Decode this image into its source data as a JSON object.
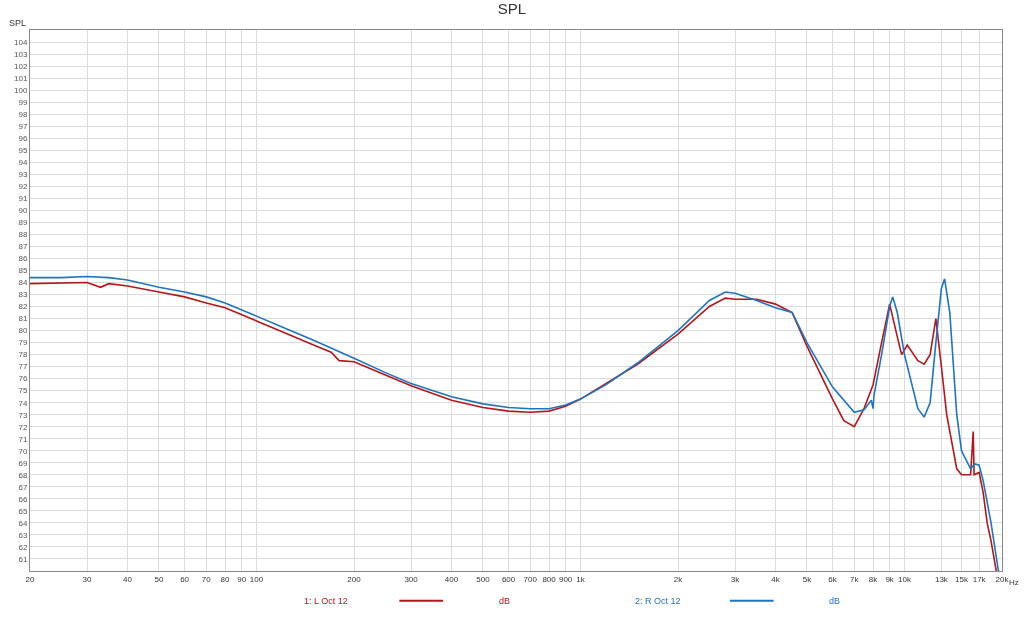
{
  "chart_data": {
    "type": "line",
    "title": "SPL",
    "ylabel": "SPL",
    "log": "x",
    "grid": true,
    "legend": "bottom",
    "marker": "none",
    "line_style": "solid",
    "xlim": [
      20,
      20000
    ],
    "ylim": [
      60,
      105
    ],
    "xticks": [
      20,
      30,
      40,
      50,
      60,
      70,
      80,
      90,
      100,
      200,
      300,
      400,
      500,
      600,
      700,
      800,
      900,
      {
        "value": 1000,
        "label": "1k"
      },
      {
        "value": 2000,
        "label": "2k"
      },
      {
        "value": 3000,
        "label": "3k"
      },
      {
        "value": 4000,
        "label": "4k"
      },
      {
        "value": 5000,
        "label": "5k"
      },
      {
        "value": 6000,
        "label": "6k"
      },
      {
        "value": 7000,
        "label": "7k"
      },
      {
        "value": 8000,
        "label": "8k"
      },
      {
        "value": 9000,
        "label": "9k"
      },
      {
        "value": 10000,
        "label": "10k"
      },
      {
        "value": 13000,
        "label": "13k"
      },
      {
        "value": 15000,
        "label": "15k"
      },
      {
        "value": 17000,
        "label": "17k"
      },
      {
        "value": 20000,
        "label": "20k"
      }
    ],
    "xlabel": "Hz",
    "yticks": [
      61,
      62,
      63,
      64,
      65,
      66,
      67,
      68,
      69,
      70,
      71,
      72,
      73,
      74,
      75,
      76,
      77,
      78,
      79,
      80,
      81,
      82,
      83,
      84,
      85,
      86,
      87,
      88,
      89,
      90,
      91,
      92,
      93,
      94,
      95,
      96,
      97,
      98,
      99,
      100,
      101,
      102,
      103,
      104
    ],
    "annotations": [
      "dB",
      "dB"
    ],
    "series": [
      {
        "name": "1: L Oct 12",
        "color": "#b3171b",
        "x": [
          20,
          30,
          33,
          35,
          40,
          50,
          60,
          70,
          80,
          100,
          120,
          150,
          170,
          180,
          200,
          250,
          300,
          400,
          500,
          600,
          700,
          800,
          900,
          1000,
          1500,
          2000,
          2500,
          2800,
          3000,
          3500,
          4000,
          4500,
          5000,
          6000,
          6500,
          7000,
          7500,
          8000,
          8500,
          9000,
          9500,
          9800,
          10200,
          11000,
          11500,
          12000,
          12500,
          13000,
          13500,
          14500,
          15000,
          16000,
          16300,
          16400,
          17000,
          17500,
          18000,
          18500,
          19200
        ],
        "values": [
          83.9,
          84.0,
          83.6,
          83.9,
          83.7,
          83.2,
          82.8,
          82.3,
          81.9,
          80.8,
          79.9,
          78.8,
          78.2,
          77.5,
          77.4,
          76.3,
          75.4,
          74.2,
          73.6,
          73.3,
          73.2,
          73.3,
          73.7,
          74.3,
          77.2,
          79.7,
          82.0,
          82.7,
          82.6,
          82.6,
          82.2,
          81.5,
          78.7,
          74.3,
          72.5,
          72.0,
          73.5,
          75.5,
          79.0,
          82.2,
          79.5,
          78.0,
          78.8,
          77.5,
          77.2,
          78.0,
          81.0,
          77.0,
          73.0,
          68.5,
          68.0,
          68.0,
          71.6,
          68.0,
          68.2,
          66.5,
          64.0,
          62.5,
          60.0
        ]
      },
      {
        "name": "2: R Oct 12",
        "color": "#1f74c0",
        "x": [
          20,
          25,
          30,
          35,
          40,
          50,
          60,
          70,
          80,
          100,
          120,
          150,
          200,
          250,
          300,
          400,
          500,
          600,
          700,
          800,
          900,
          1000,
          1200,
          1500,
          2000,
          2500,
          2800,
          3000,
          3500,
          4000,
          4500,
          5000,
          6000,
          7000,
          7500,
          7900,
          8000,
          8050,
          8500,
          9000,
          9200,
          9500,
          10000,
          11000,
          11500,
          12000,
          12500,
          13000,
          13300,
          13800,
          14500,
          15000,
          16000,
          16500,
          17000,
          17500,
          18500,
          19500
        ],
        "values": [
          84.4,
          84.4,
          84.5,
          84.4,
          84.2,
          83.6,
          83.2,
          82.8,
          82.3,
          81.2,
          80.3,
          79.2,
          77.7,
          76.5,
          75.6,
          74.5,
          73.9,
          73.6,
          73.5,
          73.5,
          73.8,
          74.3,
          75.5,
          77.3,
          80.0,
          82.5,
          83.2,
          83.1,
          82.5,
          81.9,
          81.5,
          79.0,
          75.3,
          73.2,
          73.4,
          74.2,
          73.5,
          74.6,
          78.0,
          82.0,
          82.8,
          81.5,
          78.0,
          73.5,
          72.8,
          74.0,
          79.0,
          83.5,
          84.3,
          81.5,
          73.0,
          70.0,
          68.5,
          68.9,
          68.8,
          67.5,
          64.0,
          60.0
        ]
      }
    ]
  }
}
